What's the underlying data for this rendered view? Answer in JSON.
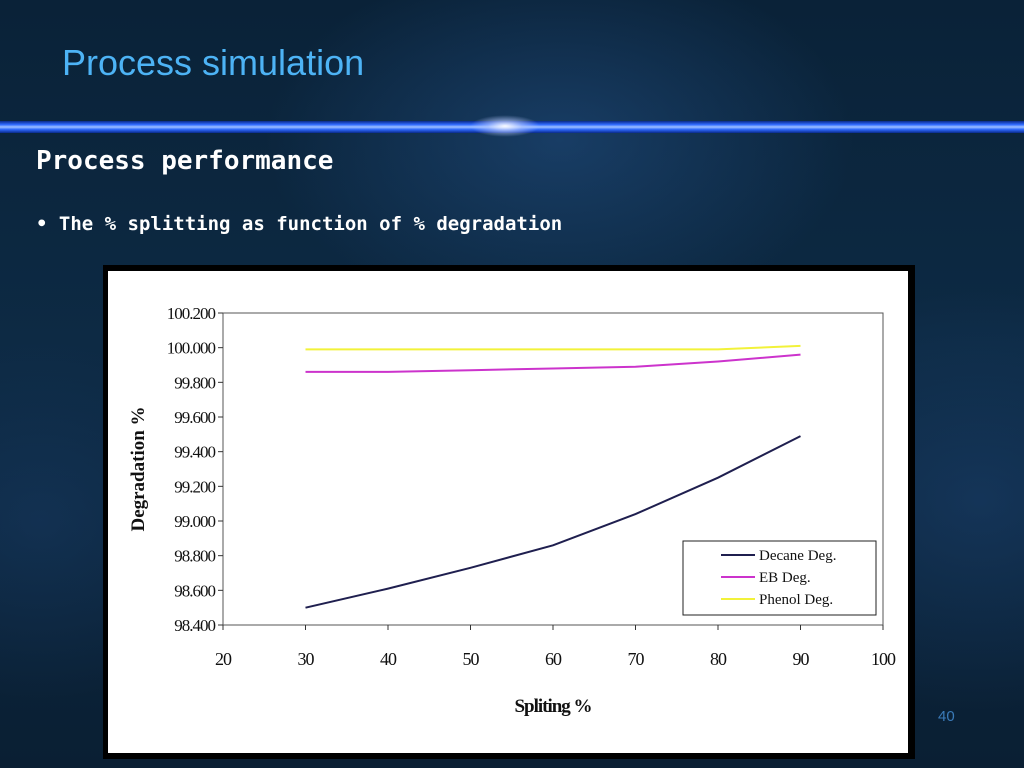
{
  "slide": {
    "title": "Process simulation",
    "heading": "Process performance",
    "bullet": "• The % splitting as function of % degradation",
    "page_number": "40"
  },
  "colors": {
    "title": "#4db3f5",
    "decane": "#1f1f4f",
    "eb": "#cc33cc",
    "phenol": "#f2f23a"
  },
  "chart_data": {
    "type": "line",
    "xlabel": "Spliting %",
    "ylabel": "Degradation %",
    "xlim": [
      20,
      100
    ],
    "ylim": [
      98.4,
      100.2
    ],
    "x_ticks": [
      "20",
      "30",
      "40",
      "50",
      "60",
      "70",
      "80",
      "90",
      "100"
    ],
    "y_ticks": [
      "98.400",
      "98.600",
      "98.800",
      "99.000",
      "99.200",
      "99.400",
      "99.600",
      "99.800",
      "100.000",
      "100.200"
    ],
    "legend_position": "bottom-right",
    "grid": false,
    "series": [
      {
        "name": "Decane Deg.",
        "color": "#1f1f4f",
        "x": [
          30,
          40,
          50,
          60,
          70,
          80,
          90
        ],
        "y": [
          98.5,
          98.61,
          98.73,
          98.86,
          99.04,
          99.25,
          99.49
        ]
      },
      {
        "name": "EB Deg.",
        "color": "#cc33cc",
        "x": [
          30,
          40,
          50,
          60,
          70,
          80,
          90
        ],
        "y": [
          99.86,
          99.86,
          99.87,
          99.88,
          99.89,
          99.92,
          99.96
        ]
      },
      {
        "name": "Phenol Deg.",
        "color": "#f2f23a",
        "x": [
          30,
          40,
          50,
          60,
          70,
          80,
          90
        ],
        "y": [
          99.99,
          99.99,
          99.99,
          99.99,
          99.99,
          99.99,
          100.01
        ]
      }
    ]
  }
}
